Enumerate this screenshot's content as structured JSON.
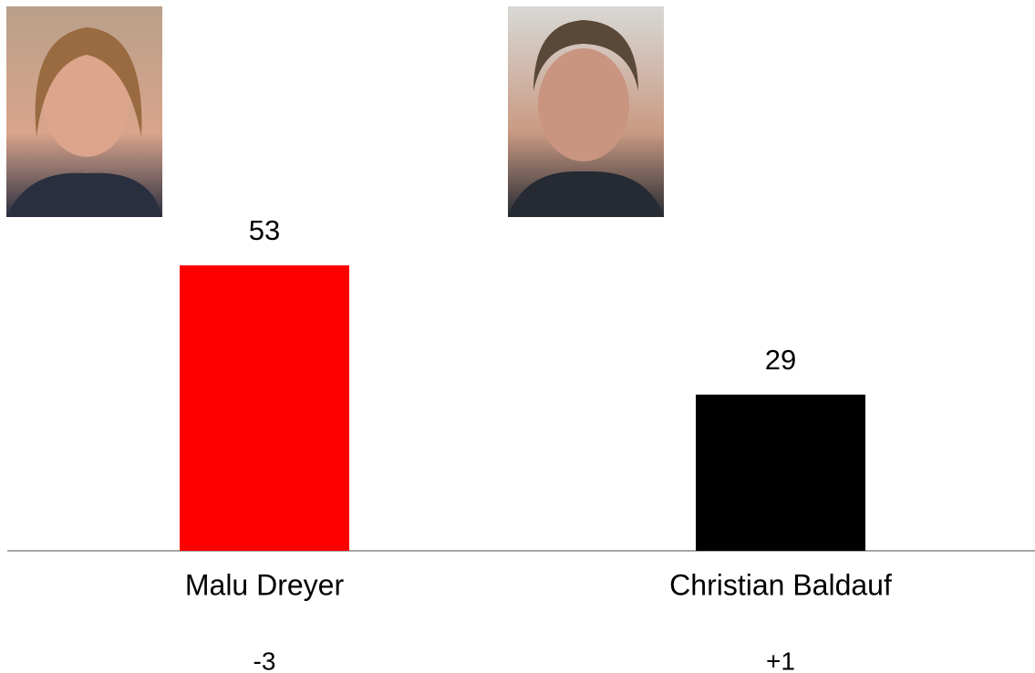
{
  "chart_data": {
    "type": "bar",
    "categories": [
      "Malu Dreyer",
      "Christian Baldauf"
    ],
    "values": [
      53,
      29
    ],
    "colors": [
      "#ff0000",
      "#000000"
    ],
    "changes": [
      "-3",
      "+1"
    ]
  }
}
